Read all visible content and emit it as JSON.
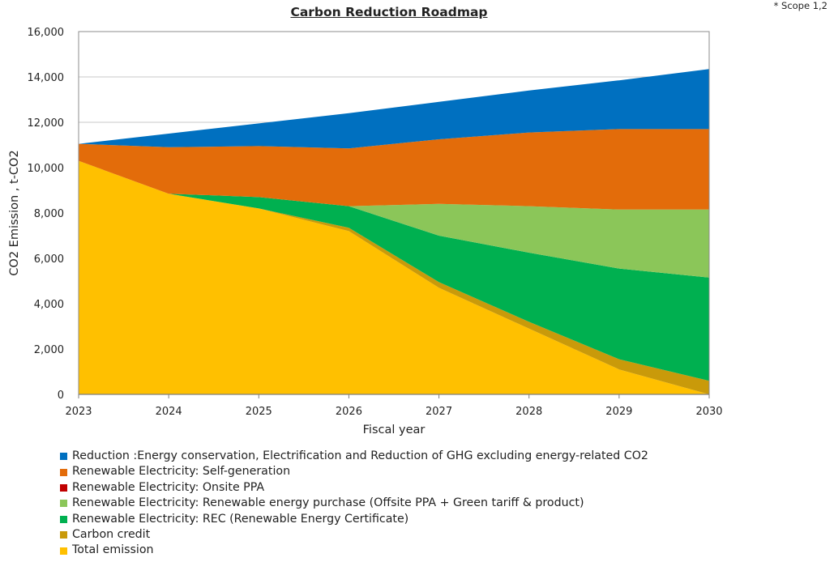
{
  "chart_data": {
    "type": "area",
    "title": "Carbon Reduction Roadmap",
    "note": "* Scope 1,2",
    "xlabel": "Fiscal year",
    "ylabel": "CO2 Emission , t-CO2",
    "ylim": [
      0,
      16000
    ],
    "yticks": [
      0,
      2000,
      4000,
      6000,
      8000,
      10000,
      12000,
      14000,
      16000
    ],
    "ytick_labels": [
      "0",
      "2,000",
      "4,000",
      "6,000",
      "8,000",
      "10,000",
      "12,000",
      "14,000",
      "16,000"
    ],
    "x": [
      "2023",
      "2024",
      "2025",
      "2026",
      "2027",
      "2028",
      "2029",
      "2030"
    ],
    "grid": "horizontal",
    "legend_position": "bottom",
    "stacking": "stacked, first series at bottom",
    "series": [
      {
        "name": "Total emission",
        "color": "#FFC000",
        "values": [
          10300,
          8850,
          8200,
          7200,
          4700,
          2900,
          1100,
          0
        ]
      },
      {
        "name": "Carbon credit",
        "color": "#C99A0A",
        "values": [
          0,
          0,
          0,
          150,
          250,
          300,
          450,
          600
        ]
      },
      {
        "name": "Renewable Electricity: REC (Renewable Energy Certificate)",
        "color": "#00B050",
        "values": [
          0,
          0,
          500,
          950,
          2050,
          3050,
          4000,
          4550
        ]
      },
      {
        "name": "Renewable Electricity: Renewable energy purchase (Offsite PPA + Green tariff & product)",
        "color": "#8BC659",
        "values": [
          0,
          0,
          0,
          0,
          1400,
          2050,
          2600,
          3000
        ]
      },
      {
        "name": "Renewable Electricity: Onsite PPA",
        "color": "#C00000",
        "values": [
          0,
          0,
          0,
          0,
          0,
          0,
          0,
          0
        ]
      },
      {
        "name": "Renewable Electricity: Self-generation",
        "color": "#E36C0A",
        "values": [
          750,
          2050,
          2250,
          2550,
          2850,
          3250,
          3550,
          3550
        ]
      },
      {
        "name": "Reduction :Energy conservation, Electrification and Reduction of GHG excluding energy-related CO2",
        "color": "#0070C0",
        "values": [
          0,
          600,
          1000,
          1550,
          1650,
          1850,
          2150,
          2650
        ]
      }
    ],
    "legend_order": [
      "Reduction :Energy conservation, Electrification and Reduction of GHG excluding energy-related CO2",
      "Renewable Electricity: Self-generation",
      "Renewable Electricity: Onsite PPA",
      "Renewable Electricity: Renewable energy purchase (Offsite PPA + Green tariff & product)",
      "Renewable Electricity: REC (Renewable Energy Certificate)",
      "Carbon credit",
      "Total emission"
    ]
  }
}
